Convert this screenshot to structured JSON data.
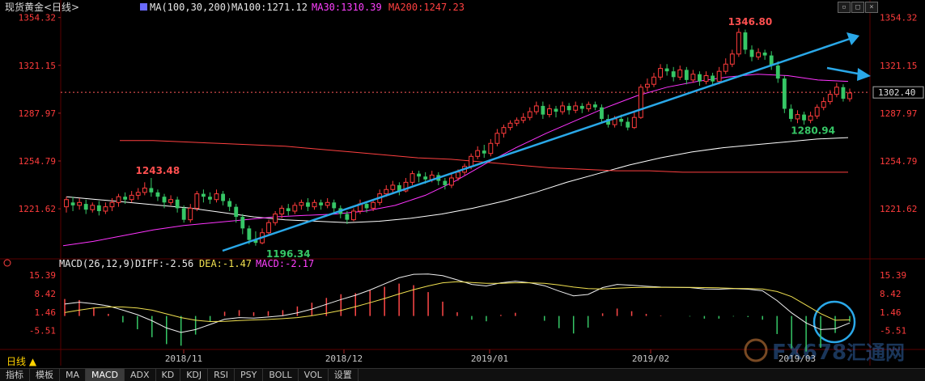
{
  "chart_data": [
    {
      "type": "candlestick",
      "instrument": "现货黄金",
      "period": "日线",
      "ylim": [
        1188,
        1362
      ],
      "y_ticks": [
        "1354.32",
        "1321.15",
        "1287.97",
        "1254.79",
        "1221.62"
      ],
      "x_ticks": [
        "2018/11",
        "2018/12",
        "2019/01",
        "2019/02",
        "2019/03"
      ],
      "indicator_header": {
        "name": "MA(100,30,200)",
        "ma100": "MA100:1271.12",
        "ma30": "MA30:1310.39",
        "ma200": "MA200:1247.23"
      },
      "current_price": "1302.40",
      "annotations": [
        {
          "text": "1346.80",
          "value": 1346.8
        },
        {
          "text": "1243.48",
          "value": 1243.48
        },
        {
          "text": "1196.34",
          "value": 1196.34
        },
        {
          "text": "1280.94",
          "value": 1280.94
        }
      ],
      "candles": [
        [
          1223,
          1228,
          1219,
          1230
        ],
        [
          1226,
          1224,
          1220,
          1230
        ],
        [
          1224,
          1226,
          1221,
          1229
        ],
        [
          1225,
          1221,
          1218,
          1228
        ],
        [
          1221,
          1224,
          1219,
          1226
        ],
        [
          1224,
          1220,
          1217,
          1227
        ],
        [
          1220,
          1223,
          1218,
          1226
        ],
        [
          1223,
          1226,
          1220,
          1229
        ],
        [
          1226,
          1230,
          1223,
          1232
        ],
        [
          1230,
          1228,
          1225,
          1233
        ],
        [
          1228,
          1231,
          1226,
          1234
        ],
        [
          1231,
          1233,
          1228,
          1236
        ],
        [
          1233,
          1236,
          1231,
          1240
        ],
        [
          1236,
          1233,
          1230,
          1243
        ],
        [
          1233,
          1230,
          1227,
          1235
        ],
        [
          1230,
          1226,
          1222,
          1232
        ],
        [
          1226,
          1228,
          1224,
          1231
        ],
        [
          1228,
          1222,
          1219,
          1230
        ],
        [
          1222,
          1214,
          1212,
          1224
        ],
        [
          1214,
          1222,
          1212,
          1225
        ],
        [
          1222,
          1232,
          1220,
          1234
        ],
        [
          1232,
          1230,
          1226,
          1235
        ],
        [
          1230,
          1228,
          1225,
          1233
        ],
        [
          1228,
          1232,
          1226,
          1235
        ],
        [
          1232,
          1227,
          1224,
          1234
        ],
        [
          1227,
          1223,
          1220,
          1229
        ],
        [
          1223,
          1216,
          1212,
          1225
        ],
        [
          1216,
          1208,
          1204,
          1218
        ],
        [
          1208,
          1200,
          1197,
          1210
        ],
        [
          1200,
          1198,
          1196,
          1206
        ],
        [
          1198,
          1205,
          1197,
          1208
        ],
        [
          1205,
          1212,
          1203,
          1214
        ],
        [
          1212,
          1218,
          1210,
          1220
        ],
        [
          1218,
          1222,
          1215,
          1224
        ],
        [
          1222,
          1220,
          1217,
          1225
        ],
        [
          1220,
          1224,
          1218,
          1226
        ],
        [
          1224,
          1226,
          1221,
          1228
        ],
        [
          1226,
          1223,
          1220,
          1229
        ],
        [
          1223,
          1226,
          1221,
          1228
        ],
        [
          1226,
          1224,
          1221,
          1228
        ],
        [
          1224,
          1226,
          1222,
          1229
        ],
        [
          1226,
          1222,
          1218,
          1228
        ],
        [
          1222,
          1218,
          1215,
          1224
        ],
        [
          1218,
          1214,
          1211,
          1220
        ],
        [
          1214,
          1220,
          1213,
          1222
        ],
        [
          1220,
          1225,
          1218,
          1228
        ],
        [
          1225,
          1222,
          1219,
          1227
        ],
        [
          1222,
          1226,
          1220,
          1228
        ],
        [
          1226,
          1232,
          1224,
          1235
        ],
        [
          1232,
          1235,
          1230,
          1238
        ],
        [
          1235,
          1238,
          1233,
          1241
        ],
        [
          1238,
          1234,
          1231,
          1240
        ],
        [
          1234,
          1240,
          1233,
          1243
        ],
        [
          1240,
          1246,
          1238,
          1248
        ],
        [
          1246,
          1244,
          1240,
          1248
        ],
        [
          1244,
          1242,
          1239,
          1247
        ],
        [
          1242,
          1245,
          1240,
          1248
        ],
        [
          1245,
          1241,
          1238,
          1247
        ],
        [
          1241,
          1238,
          1235,
          1243
        ],
        [
          1238,
          1243,
          1236,
          1246
        ],
        [
          1243,
          1247,
          1241,
          1249
        ],
        [
          1247,
          1251,
          1245,
          1253
        ],
        [
          1251,
          1258,
          1249,
          1260
        ],
        [
          1258,
          1262,
          1256,
          1265
        ],
        [
          1262,
          1260,
          1257,
          1266
        ],
        [
          1260,
          1267,
          1258,
          1270
        ],
        [
          1267,
          1274,
          1265,
          1277
        ],
        [
          1274,
          1278,
          1271,
          1280
        ],
        [
          1278,
          1281,
          1276,
          1283
        ],
        [
          1281,
          1283,
          1279,
          1285
        ],
        [
          1283,
          1285,
          1281,
          1288
        ],
        [
          1285,
          1289,
          1283,
          1292
        ],
        [
          1289,
          1293,
          1287,
          1296
        ],
        [
          1293,
          1287,
          1284,
          1296
        ],
        [
          1287,
          1291,
          1285,
          1294
        ],
        [
          1291,
          1289,
          1285,
          1293
        ],
        [
          1289,
          1293,
          1287,
          1296
        ],
        [
          1293,
          1290,
          1287,
          1295
        ],
        [
          1290,
          1293,
          1288,
          1296
        ],
        [
          1293,
          1291,
          1288,
          1295
        ],
        [
          1291,
          1294,
          1289,
          1296
        ],
        [
          1294,
          1292,
          1290,
          1296
        ],
        [
          1292,
          1284,
          1282,
          1294
        ],
        [
          1284,
          1280,
          1278,
          1287
        ],
        [
          1280,
          1284,
          1278,
          1286
        ],
        [
          1284,
          1282,
          1279,
          1287
        ],
        [
          1282,
          1278,
          1276,
          1285
        ],
        [
          1278,
          1285,
          1277,
          1289
        ],
        [
          1285,
          1306,
          1284,
          1308
        ],
        [
          1306,
          1308,
          1303,
          1312
        ],
        [
          1308,
          1313,
          1306,
          1316
        ],
        [
          1313,
          1319,
          1311,
          1322
        ],
        [
          1319,
          1317,
          1314,
          1322
        ],
        [
          1317,
          1313,
          1310,
          1320
        ],
        [
          1313,
          1318,
          1311,
          1321
        ],
        [
          1318,
          1311,
          1308,
          1320
        ],
        [
          1311,
          1315,
          1309,
          1318
        ],
        [
          1315,
          1310,
          1307,
          1317
        ],
        [
          1310,
          1314,
          1308,
          1317
        ],
        [
          1314,
          1310,
          1307,
          1316
        ],
        [
          1310,
          1317,
          1308,
          1320
        ],
        [
          1317,
          1322,
          1315,
          1326
        ],
        [
          1322,
          1329,
          1320,
          1332
        ],
        [
          1329,
          1344,
          1327,
          1347
        ],
        [
          1344,
          1332,
          1329,
          1346
        ],
        [
          1332,
          1327,
          1324,
          1335
        ],
        [
          1327,
          1330,
          1325,
          1333
        ],
        [
          1330,
          1328,
          1325,
          1332
        ],
        [
          1328,
          1321,
          1318,
          1331
        ],
        [
          1321,
          1312,
          1309,
          1324
        ],
        [
          1312,
          1291,
          1288,
          1314
        ],
        [
          1291,
          1284,
          1282,
          1294
        ],
        [
          1284,
          1287,
          1281,
          1290
        ],
        [
          1287,
          1283,
          1280,
          1289
        ],
        [
          1283,
          1286,
          1281,
          1289
        ],
        [
          1286,
          1292,
          1284,
          1294
        ],
        [
          1292,
          1296,
          1290,
          1299
        ],
        [
          1296,
          1301,
          1294,
          1304
        ],
        [
          1301,
          1306,
          1299,
          1309
        ],
        [
          1306,
          1298,
          1296,
          1308
        ],
        [
          1298,
          1302,
          1296,
          1305
        ]
      ],
      "lines": [
        {
          "name": "MA100",
          "color": "#ffffff",
          "values": [
            1230,
            1228,
            1226,
            1224,
            1222,
            1219,
            1216,
            1214,
            1213,
            1212,
            1213,
            1215,
            1218,
            1222,
            1227,
            1233,
            1240,
            1246,
            1252,
            1257,
            1261,
            1264,
            1266,
            1268,
            1270,
            1271
          ]
        },
        {
          "name": "MA30",
          "color": "#ff34ff",
          "values": [
            1196,
            1199,
            1203,
            1207,
            1210,
            1212,
            1214,
            1216,
            1217,
            1218,
            1220,
            1224,
            1231,
            1241,
            1253,
            1264,
            1274,
            1283,
            1292,
            1300,
            1306,
            1310,
            1313,
            1315,
            1314,
            1311,
            1310
          ]
        },
        {
          "name": "MA200",
          "color": "#ff4040",
          "values": [
            1269,
            1269,
            1268,
            1267,
            1266,
            1265,
            1263,
            1261,
            1259,
            1257,
            1256,
            1254,
            1252,
            1250,
            1249,
            1248,
            1248,
            1247,
            1247,
            1247,
            1247,
            1247,
            1247
          ]
        }
      ]
    },
    {
      "type": "macd",
      "header": {
        "name": "MACD(26,12,9)",
        "diff": "DIFF:-2.56",
        "dea": "DEA:-1.47",
        "macd": "MACD:-2.17"
      },
      "ylim": [
        -12,
        20
      ],
      "y_ticks": [
        "15.39",
        "8.42",
        "1.46",
        "-5.51"
      ],
      "diff": [
        4.5,
        5.2,
        4.6,
        3.8,
        2.2,
        0.5,
        -1.8,
        -4.5,
        -6.2,
        -5.1,
        -3.2,
        -1.2,
        -0.6,
        -0.8,
        -0.4,
        0.1,
        1.2,
        2.6,
        4.4,
        6.2,
        7.8,
        9.8,
        12.1,
        14.4,
        15.7,
        15.8,
        15.2,
        13.6,
        11.9,
        11.3,
        12.5,
        13.1,
        12.5,
        11.4,
        9.4,
        7.6,
        8.1,
        10.7,
        11.9,
        11.6,
        11.2,
        10.9,
        10.8,
        10.7,
        10.2,
        10.1,
        10.3,
        10.1,
        9.5,
        5.8,
        1.2,
        -2.6,
        -5.1,
        -4.8,
        -2.6
      ],
      "dea": [
        1.3,
        2.2,
        3.0,
        3.4,
        3.4,
        3.0,
        2.2,
        0.8,
        -0.6,
        -1.6,
        -2.1,
        -2.0,
        -1.7,
        -1.5,
        -1.3,
        -1.0,
        -0.6,
        0.1,
        1.0,
        2.1,
        3.5,
        5.0,
        6.6,
        8.3,
        9.9,
        11.3,
        12.5,
        12.9,
        12.6,
        12.3,
        12.3,
        12.5,
        12.5,
        12.3,
        11.7,
        10.9,
        10.3,
        10.2,
        10.5,
        10.7,
        10.8,
        10.8,
        10.8,
        10.8,
        10.7,
        10.6,
        10.4,
        10.3,
        10.2,
        9.2,
        7.3,
        4.1,
        0.9,
        -1.6,
        -1.47
      ],
      "macd_hist": [
        6.4,
        6.0,
        3.2,
        0.8,
        -2.4,
        -5.0,
        -8.0,
        -10.6,
        -11.2,
        -7.0,
        -2.2,
        1.6,
        2.2,
        1.4,
        1.8,
        2.2,
        3.6,
        5.0,
        6.8,
        8.2,
        8.6,
        9.6,
        11.0,
        12.2,
        11.6,
        9.0,
        5.4,
        1.4,
        -1.4,
        -2.0,
        0.4,
        1.2,
        0.0,
        -1.8,
        -4.6,
        -6.6,
        -4.4,
        1.0,
        2.8,
        1.8,
        0.8,
        0.2,
        0.0,
        -0.2,
        -1.0,
        -1.0,
        -0.2,
        -0.4,
        -1.4,
        -6.8,
        -12.2,
        -13.4,
        -12.0,
        -6.4,
        -2.17
      ],
      "colors": {
        "up": "#ff4848",
        "down": "#36c766",
        "diff": "#f0f0f0",
        "dea": "#f0e050"
      }
    }
  ],
  "ui": {
    "period_label": "日线 ▲",
    "bottom_tabs": [
      "指标",
      "模板",
      "MA",
      "MACD",
      "ADX",
      "KD",
      "KDJ",
      "RSI",
      "PSY",
      "BOLL",
      "VOL",
      "设置"
    ],
    "active_tab": "MACD",
    "watermark_latin": "FX678",
    "watermark_cn": "汇通网"
  }
}
